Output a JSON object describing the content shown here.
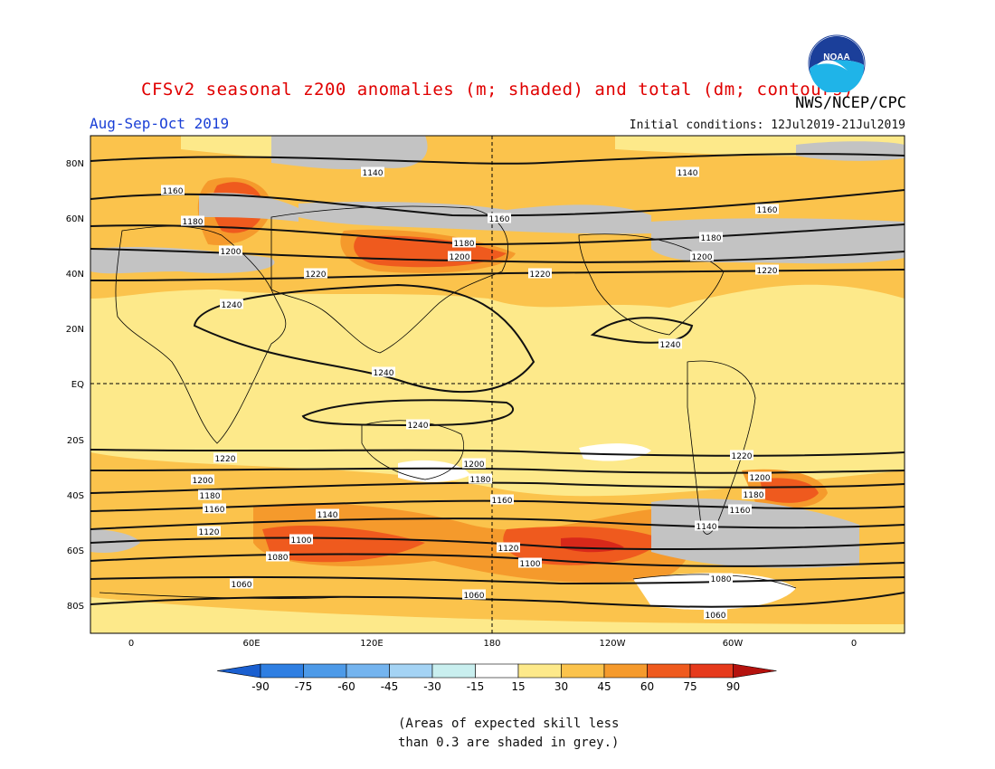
{
  "header": {
    "title": "CFSv2 seasonal z200 anomalies (m; shaded) and total (dm; contours)",
    "agency": "NWS/NCEP/CPC",
    "season": "Aug-Sep-Oct 2019",
    "initial_conditions": "Initial conditions: 12Jul2019-21Jul2019"
  },
  "logo": {
    "text": "NOAA",
    "icon": "noaa-logo-icon"
  },
  "map": {
    "lat_labels": [
      "80N",
      "60N",
      "40N",
      "20N",
      "EQ",
      "20S",
      "40S",
      "60S",
      "80S"
    ],
    "lon_labels": [
      "0",
      "60E",
      "120E",
      "180",
      "120W",
      "60W",
      "0"
    ],
    "colors": {
      "pale_yellow": "#fde98a",
      "light_orange": "#fbc34c",
      "orange": "#f59a2c",
      "red_orange": "#ef5a1e",
      "deep_red": "#d8281a",
      "grey": "#c3c3c3",
      "white": "#ffffff"
    },
    "contour_labels": [
      {
        "text": "1140"
      },
      {
        "text": "1140"
      },
      {
        "text": "1160"
      },
      {
        "text": "1180"
      },
      {
        "text": "1160"
      },
      {
        "text": "1160"
      },
      {
        "text": "1180"
      },
      {
        "text": "1180"
      },
      {
        "text": "1200"
      },
      {
        "text": "1200"
      },
      {
        "text": "1200"
      },
      {
        "text": "1220"
      },
      {
        "text": "1220"
      },
      {
        "text": "1220"
      },
      {
        "text": "1240"
      },
      {
        "text": "1240"
      },
      {
        "text": "1240"
      },
      {
        "text": "1240"
      },
      {
        "text": "1220"
      },
      {
        "text": "1220"
      },
      {
        "text": "1200"
      },
      {
        "text": "1200"
      },
      {
        "text": "1200"
      },
      {
        "text": "1180"
      },
      {
        "text": "1180"
      },
      {
        "text": "1180"
      },
      {
        "text": "1160"
      },
      {
        "text": "1160"
      },
      {
        "text": "1160"
      },
      {
        "text": "1140"
      },
      {
        "text": "1140"
      },
      {
        "text": "1120"
      },
      {
        "text": "1120"
      },
      {
        "text": "1100"
      },
      {
        "text": "1100"
      },
      {
        "text": "1080"
      },
      {
        "text": "1080"
      },
      {
        "text": "1060"
      },
      {
        "text": "1060"
      },
      {
        "text": "1060"
      }
    ]
  },
  "colorbar": {
    "labels": [
      "-90",
      "-75",
      "-60",
      "-45",
      "-30",
      "-15",
      "15",
      "30",
      "45",
      "60",
      "75",
      "90"
    ],
    "colors": [
      "#1a5fd0",
      "#2f7fe2",
      "#4d9ae8",
      "#74b4ef",
      "#a4d3f4",
      "#c9efef",
      "#ffffff",
      "#fde98a",
      "#fbc34c",
      "#f59a2c",
      "#ef5a1e",
      "#e63a1c",
      "#b5120e"
    ]
  },
  "note": {
    "line1": "(Areas of expected skill less",
    "line2": "than 0.3 are shaded in grey.)"
  }
}
